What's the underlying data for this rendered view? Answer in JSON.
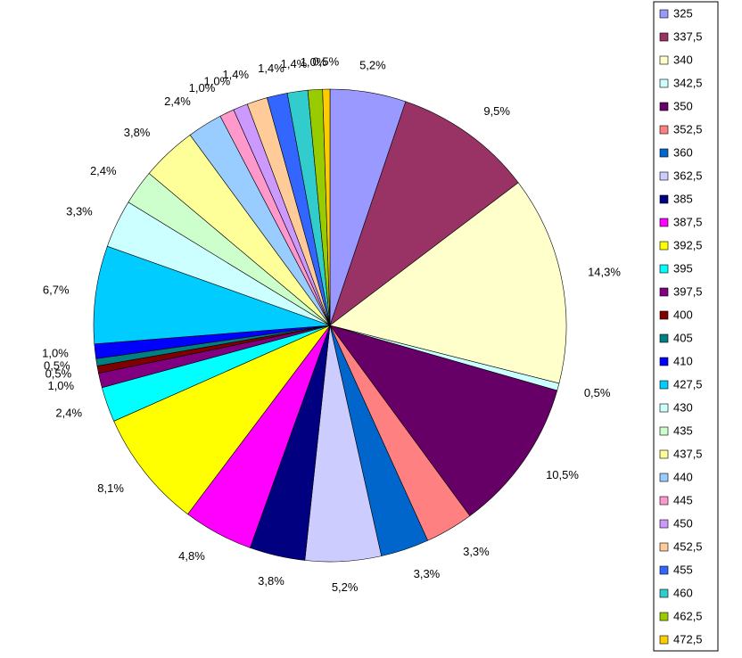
{
  "chart_data": {
    "type": "pie",
    "categories": [
      "325",
      "337,5",
      "340",
      "342,5",
      "350",
      "352,5",
      "360",
      "362,5",
      "385",
      "387,5",
      "392,5",
      "395",
      "397,5",
      "400",
      "405",
      "410",
      "427,5",
      "430",
      "435",
      "437,5",
      "440",
      "445",
      "450",
      "452,5",
      "455",
      "460",
      "462,5",
      "472,5"
    ],
    "values": [
      5.2,
      9.5,
      14.3,
      0.5,
      10.5,
      3.3,
      3.3,
      5.2,
      3.8,
      4.8,
      8.1,
      2.4,
      1.0,
      0.5,
      0.5,
      1.0,
      6.7,
      3.3,
      2.4,
      3.8,
      2.4,
      1.0,
      1.0,
      1.4,
      1.4,
      1.4,
      1.0,
      0.5
    ],
    "value_labels": [
      "5,2%",
      "9,5%",
      "14,3%",
      "0,5%",
      "10,5%",
      "3,3%",
      "3,3%",
      "5,2%",
      "3,8%",
      "4,8%",
      "8,1%",
      "2,4%",
      "1,0%",
      "0,5%",
      "0,5%",
      "1,0%",
      "6,7%",
      "3,3%",
      "2,4%",
      "3,8%",
      "2,4%",
      "1,0%",
      "1,0%",
      "1,4%",
      "1,4%",
      "1,4%",
      "1,0%",
      "0,5%"
    ],
    "colors": [
      "#9999ff",
      "#993366",
      "#ffffcc",
      "#ccffff",
      "#660066",
      "#ff8080",
      "#0066cc",
      "#ccccff",
      "#000080",
      "#ff00ff",
      "#ffff00",
      "#00ffff",
      "#800080",
      "#800000",
      "#008080",
      "#0000ff",
      "#00ccff",
      "#ccffff",
      "#ccffcc",
      "#ffff99",
      "#99ccff",
      "#ff99cc",
      "#cc99ff",
      "#ffcc99",
      "#3366ff",
      "#33cccc",
      "#99cc00",
      "#ffcc00"
    ],
    "legend": "right"
  }
}
